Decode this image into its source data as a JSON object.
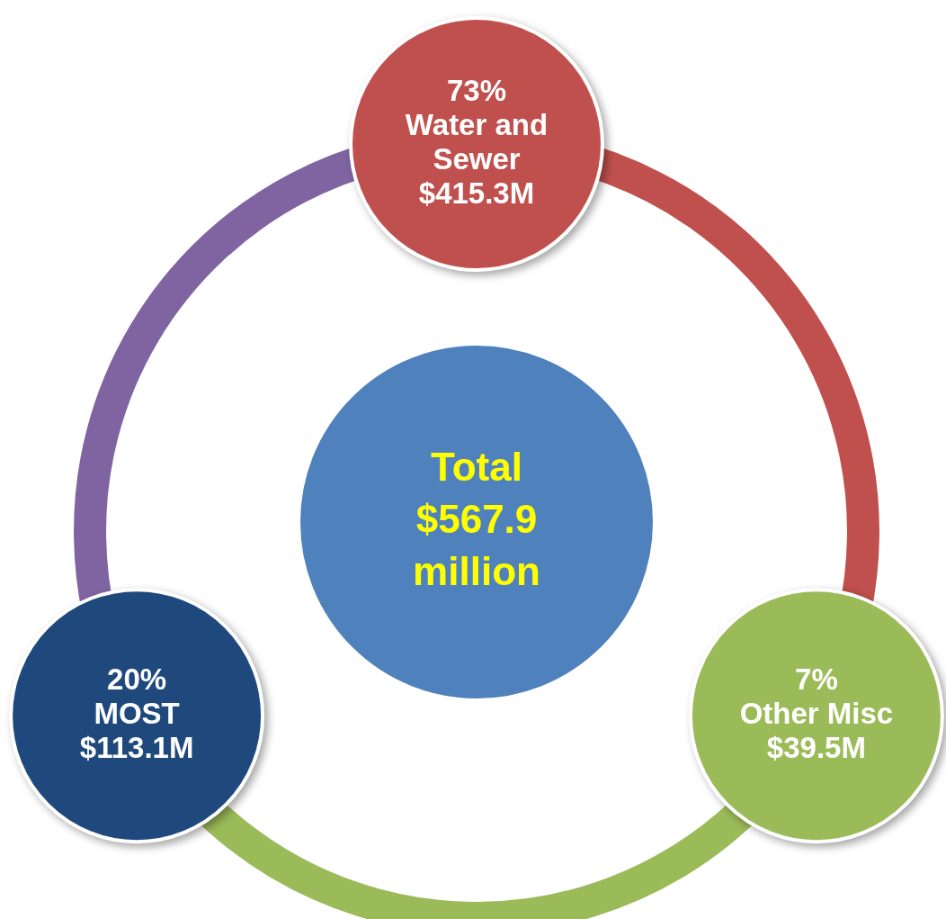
{
  "chart_data": {
    "type": "other",
    "categories": [
      "Water and Sewer",
      "MOST",
      "Other Misc"
    ],
    "series": [
      {
        "values": [
          73,
          20,
          7
        ],
        "value_labels": [
          "73%",
          "20%",
          "7%"
        ],
        "colors": [
          "#c0504d",
          "#1f497d",
          "#9bbb59"
        ]
      },
      {
        "values": [
          415.3,
          113.1,
          39.5
        ],
        "value_labels": [
          "$415.3M",
          "$113.1M",
          "$39.5M"
        ]
      }
    ],
    "annotations": [
      "Total",
      "$567.9",
      "million"
    ]
  }
}
